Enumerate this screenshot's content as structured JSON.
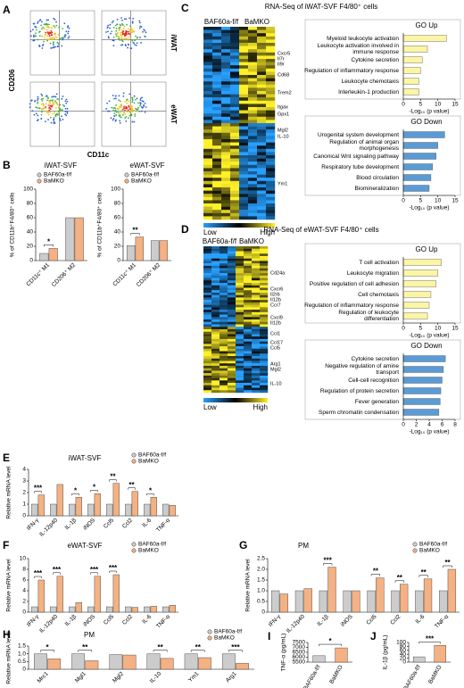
{
  "chart_data": [
    {
      "type": "flow",
      "panel": "A",
      "ylabel": "CD206",
      "xlabel": "CD11c",
      "rows": [
        "iWAT",
        "eWAT"
      ]
    },
    {
      "type": "bar",
      "panel": "B",
      "title": "iWAT-SVF",
      "ylabel": "% of CD11b⁺F4/80⁺ cells",
      "categories": [
        "CD11c⁺ M1",
        "CD206⁺ M2"
      ],
      "series": [
        {
          "name": "BAF60a-f/f",
          "color": "#cccccc",
          "values": [
            10,
            60
          ]
        },
        {
          "name": "BaMKO",
          "color": "#f4b183",
          "values": [
            17,
            60
          ]
        }
      ],
      "significance": [
        "*",
        null
      ],
      "ylim": [
        0,
        100
      ],
      "yticks": [
        0,
        20,
        40,
        60,
        80,
        100
      ],
      "legend": "top-left"
    },
    {
      "type": "bar",
      "title": "eWAT-SVF",
      "ylabel": "% of CD11b⁺F4/80⁺ cells",
      "categories": [
        "CD11c⁺ M1",
        "CD206⁺ M2"
      ],
      "series": [
        {
          "name": "BAF60a-f/f",
          "color": "#cccccc",
          "values": [
            21,
            28
          ]
        },
        {
          "name": "BaMKO",
          "color": "#f4b183",
          "values": [
            33,
            28
          ]
        }
      ],
      "significance": [
        "**",
        null
      ],
      "ylim": [
        0,
        100
      ],
      "yticks": [
        0,
        20,
        40,
        60,
        80,
        100
      ],
      "legend": "top-left"
    },
    {
      "type": "heatmap_go",
      "panel": "C",
      "title": "RNA-Seq of iWAT-SVF F4/80⁺ cells",
      "columns": [
        "BAF60a-f/f",
        "BaMKO"
      ],
      "genes": [
        "Cxcr5",
        "Il7r",
        "Il9r",
        "Cd68",
        "Trem2",
        "Itgax",
        "Gpx1",
        "Mgl2",
        "IL-10",
        "Ym1"
      ],
      "scale": [
        "Low",
        "High"
      ],
      "go": [
        {
          "title": "GO Up",
          "color": "#fbf5a5",
          "terms": [
            "Myeloid leukocyte activation",
            "Leukocyte activation involved in immune response",
            "Cytokine secretion",
            "Regulation of inflammatory response",
            "Leukocyte chemotaxis",
            "Interleukin-1 production"
          ],
          "values": [
            12.5,
            7,
            5.5,
            5,
            4.5,
            4.5
          ],
          "xlim": [
            0,
            15
          ],
          "xticks": [
            0,
            5,
            10,
            15
          ],
          "xlabel": "-Log₁₀ (p value)"
        },
        {
          "title": "GO Down",
          "color": "#5b9bd5",
          "terms": [
            "Urogenital system development",
            "Regulation of animal organ morphogenesis",
            "Canonical Wnt signaling pathway",
            "Respiratory tube development",
            "Blood circulation",
            "Biomineralization"
          ],
          "values": [
            12,
            10,
            9.5,
            8.5,
            8,
            7.5
          ],
          "xlim": [
            0,
            15
          ],
          "xticks": [
            0,
            5,
            10,
            15
          ],
          "xlabel": "-Log₁₀ (p value)"
        }
      ]
    },
    {
      "type": "heatmap_go",
      "panel": "D",
      "title": "RNA-Seq of eWAT-SVF F4/80⁺ cells",
      "columns": [
        "BAF60a-f/f",
        "BaMKO"
      ],
      "genes": [
        "Cd24a",
        "Cxcr6",
        "Il2rb",
        "Il12b",
        "Ccr7",
        "Cxcl9",
        "Il12b",
        "Ccl1",
        "Ccl17",
        "Ccl5",
        "Arg1",
        "Mgl2",
        "IL-10"
      ],
      "scale": [
        "Low",
        "High"
      ],
      "go": [
        {
          "title": "GO Up",
          "color": "#fbf5a5",
          "terms": [
            "T cell activation",
            "Leukocyte migration",
            "Positive regulation of cell adhesion",
            "Cell chemotaxis",
            "Regulation of inflammatory response",
            "Regulation of leukocyte differentiation"
          ],
          "values": [
            11,
            10,
            9.5,
            8,
            7.5,
            7
          ],
          "xlim": [
            0,
            15
          ],
          "xticks": [
            0,
            5,
            10,
            15
          ],
          "xlabel": "-Log₁₀ (p value)"
        },
        {
          "title": "GO Down",
          "color": "#5b9bd5",
          "terms": [
            "Cytokine secretion",
            "Negative regulation of amine transport",
            "Cell-cell recognition",
            "Regulation of protein secretion",
            "Fever generation",
            "Sperm chromatin condensation"
          ],
          "values": [
            6.5,
            6.2,
            6,
            5.8,
            5.7,
            5.5
          ],
          "xlim": [
            0,
            8
          ],
          "xticks": [
            0,
            2,
            4,
            6,
            8
          ],
          "xlabel": "-Log₁₀ (p value)"
        }
      ]
    },
    {
      "type": "bar",
      "panel": "E",
      "title": "iWAT-SVF",
      "ylabel": "Relative mRNA level",
      "categories": [
        "IFN-γ",
        "IL-12p40",
        "IL-1β",
        "iNOS",
        "Ccl5",
        "Ccl2",
        "IL-6",
        "TNF-α"
      ],
      "series": [
        {
          "name": "BAF60a-f/f",
          "color": "#cccccc",
          "values": [
            1,
            1,
            1,
            1,
            1,
            1,
            1,
            1
          ]
        },
        {
          "name": "BaMKO",
          "color": "#f4b183",
          "values": [
            1.8,
            2.7,
            1.6,
            1.9,
            2.8,
            2.1,
            1.6,
            0.9
          ]
        }
      ],
      "significance": [
        "***",
        null,
        "*",
        "*",
        "**",
        "**",
        "*",
        null
      ],
      "ylim": [
        0,
        4
      ],
      "yticks": [
        0,
        1,
        2,
        3,
        4
      ],
      "legend": "top-right"
    },
    {
      "type": "bar",
      "panel": "F",
      "title": "eWAT-SVF",
      "ylabel": "Relative mRNA level",
      "categories": [
        "IFN-γ",
        "IL-12p40",
        "IL-1β",
        "iNOS",
        "Ccl5",
        "Ccl2",
        "IL-6",
        "TNF-α"
      ],
      "series": [
        {
          "name": "BAF60a-f/f",
          "color": "#cccccc",
          "values": [
            1,
            1,
            1,
            1,
            1,
            1,
            1,
            1
          ]
        },
        {
          "name": "BaMKO",
          "color": "#f4b183",
          "values": [
            6,
            6.7,
            1.8,
            6.7,
            7,
            0.9,
            1.1,
            1.3
          ]
        }
      ],
      "significance": [
        "***",
        "***",
        null,
        "***",
        "***",
        null,
        null,
        null
      ],
      "ylim": [
        0,
        10
      ],
      "yticks": [
        0,
        2,
        4,
        6,
        8,
        10
      ],
      "legend": "top-right"
    },
    {
      "type": "bar",
      "panel": "G",
      "title": "PM",
      "ylabel": "Relative mRNA level",
      "categories": [
        "IFN-γ",
        "IL-12p40",
        "IL-1β",
        "iNOS",
        "Ccl5",
        "Ccl2",
        "IL-6",
        "TNF-α"
      ],
      "series": [
        {
          "name": "BAF60a-f/f",
          "color": "#cccccc",
          "values": [
            1,
            1,
            1,
            1,
            1,
            1,
            1,
            1
          ]
        },
        {
          "name": "BaMKO",
          "color": "#f4b183",
          "values": [
            0.85,
            1.1,
            2.1,
            1,
            1.6,
            1.3,
            1.55,
            2
          ]
        }
      ],
      "significance": [
        null,
        null,
        "***",
        null,
        "**",
        "**",
        "**",
        "**"
      ],
      "ylim": [
        0,
        2.5
      ],
      "yticks": [
        0,
        0.5,
        {
          "value": 1,
          "label": "1.0"
        },
        1.5,
        {
          "value": 2,
          "label": "2.0"
        },
        2.5
      ],
      "legend": "top-right"
    },
    {
      "type": "bar",
      "panel": "H",
      "title": "PM",
      "ylabel": "Relative mRNA level",
      "categories": [
        "Mrc1",
        "Mgl1",
        "Mgl2",
        "IL-10",
        "Ym1",
        "Arg1"
      ],
      "series": [
        {
          "name": "BAF60a-f/f",
          "color": "#cccccc",
          "values": [
            1,
            1,
            0.95,
            1,
            1,
            1
          ]
        },
        {
          "name": "BaMKO",
          "color": "#f4b183",
          "values": [
            0.67,
            0.55,
            0.92,
            0.7,
            0.75,
            0.38
          ]
        }
      ],
      "significance": [
        "*",
        "**",
        null,
        "**",
        "**",
        "***"
      ],
      "ylim": [
        0,
        1.5
      ],
      "yticks": [
        0,
        0.5,
        {
          "value": 1,
          "label": "1.0"
        },
        1.5
      ],
      "legend": "top-right"
    },
    {
      "type": "bar",
      "panel": "I",
      "ylabel": "TNF-α (pg/mL)",
      "categories": [
        "BAF60a-f/f",
        "BaMKO"
      ],
      "values": [
        6150,
        6950
      ],
      "colors": [
        "#cccccc",
        "#f4b183"
      ],
      "significance": "*",
      "ylim": [
        5500,
        7500
      ],
      "yticks": [
        5500,
        6000,
        6500,
        7000,
        7500
      ]
    },
    {
      "type": "bar",
      "panel": "J",
      "ylabel": "IL-1β (pg/mL)",
      "categories": [
        "BAF60a-f/f",
        "BaMKO"
      ],
      "values": [
        27,
        85
      ],
      "colors": [
        "#cccccc",
        "#f4b183"
      ],
      "significance": "***",
      "ylim": [
        0,
        100
      ],
      "yticks": [
        0,
        20,
        40,
        60,
        80,
        100
      ]
    }
  ]
}
